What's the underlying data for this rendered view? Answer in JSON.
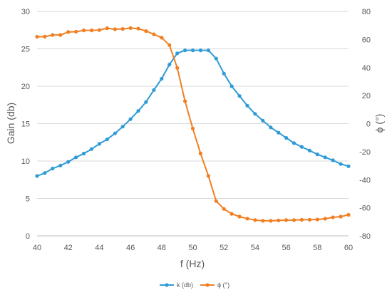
{
  "chart_data": {
    "type": "line",
    "xlabel": "f (Hz)",
    "ylabel": "Gain (db)",
    "y2label": "ϕ (°)",
    "xlim": [
      40,
      60
    ],
    "ylim": [
      0,
      30
    ],
    "y2lim": [
      -80,
      80
    ],
    "xticks": [
      "40",
      "42",
      "44",
      "46",
      "48",
      "50",
      "52",
      "54",
      "56",
      "58",
      "60"
    ],
    "yticks": [
      "0",
      "5",
      "10",
      "15",
      "20",
      "25",
      "30"
    ],
    "y2ticks": [
      "-80",
      "-60",
      "-40",
      "-20",
      "0",
      "20",
      "40",
      "60",
      "80"
    ],
    "grid": "horizontal",
    "legend_position": "bottom",
    "x": [
      40,
      40.5,
      41,
      41.5,
      42,
      42.5,
      43,
      43.5,
      44,
      44.5,
      45,
      45.5,
      46,
      46.5,
      47,
      47.5,
      48,
      48.5,
      49,
      49.5,
      50,
      50.5,
      51,
      51.5,
      52,
      52.5,
      53,
      53.5,
      54,
      54.5,
      55,
      55.5,
      56,
      56.5,
      57,
      57.5,
      58,
      58.5,
      59,
      59.5,
      60
    ],
    "series": [
      {
        "name": "k (db)",
        "axis": "left",
        "color": "#2e9bd6",
        "values": [
          8.0,
          8.4,
          9.0,
          9.4,
          9.9,
          10.5,
          11.0,
          11.6,
          12.3,
          12.9,
          13.7,
          14.6,
          15.6,
          16.7,
          17.9,
          19.5,
          21.0,
          22.9,
          24.4,
          24.8,
          24.8,
          24.8,
          24.8,
          23.7,
          21.7,
          20.0,
          18.7,
          17.4,
          16.3,
          15.4,
          14.5,
          13.8,
          13.1,
          12.4,
          11.9,
          11.4,
          10.9,
          10.5,
          10.1,
          9.6,
          9.3
        ]
      },
      {
        "name": "ϕ (°)",
        "axis": "right",
        "color": "#f07f22",
        "values": [
          61.9,
          62.0,
          63.2,
          63.2,
          65.3,
          65.5,
          66.5,
          66.5,
          66.7,
          68.0,
          67.3,
          67.5,
          68.1,
          67.7,
          66.0,
          63.7,
          61.3,
          56.0,
          39.7,
          16.0,
          -3.5,
          -21.3,
          -37.3,
          -55.2,
          -60.8,
          -64.3,
          -66.3,
          -67.7,
          -68.7,
          -69.3,
          -69.3,
          -69.0,
          -68.8,
          -68.8,
          -68.5,
          -68.5,
          -68.3,
          -67.8,
          -66.8,
          -66.3,
          -65.0
        ]
      }
    ]
  }
}
